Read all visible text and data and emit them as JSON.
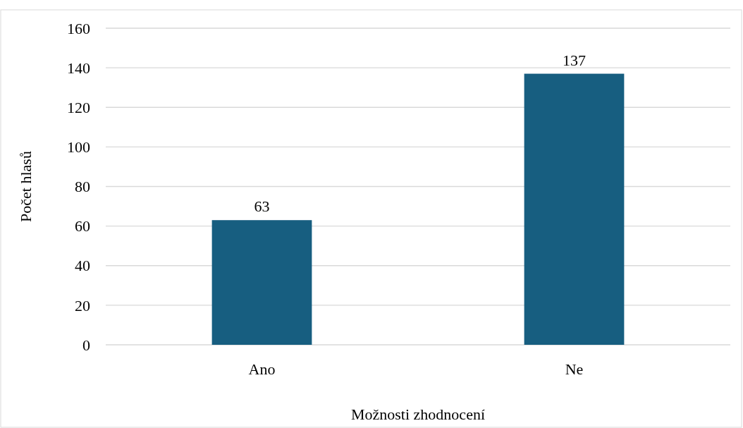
{
  "chart_data": {
    "type": "bar",
    "xlabel": "Možnosti zhodnocení",
    "ylabel": "Počet hlasů",
    "categories": [
      "Ano",
      "Ne"
    ],
    "series": [
      {
        "color": "#175e80",
        "values": [
          63,
          137
        ]
      }
    ],
    "ylim": [
      0,
      160
    ],
    "yticks": [
      0,
      20,
      40,
      60,
      80,
      100,
      120,
      140,
      160
    ],
    "grid": "y",
    "data_labels": true
  }
}
